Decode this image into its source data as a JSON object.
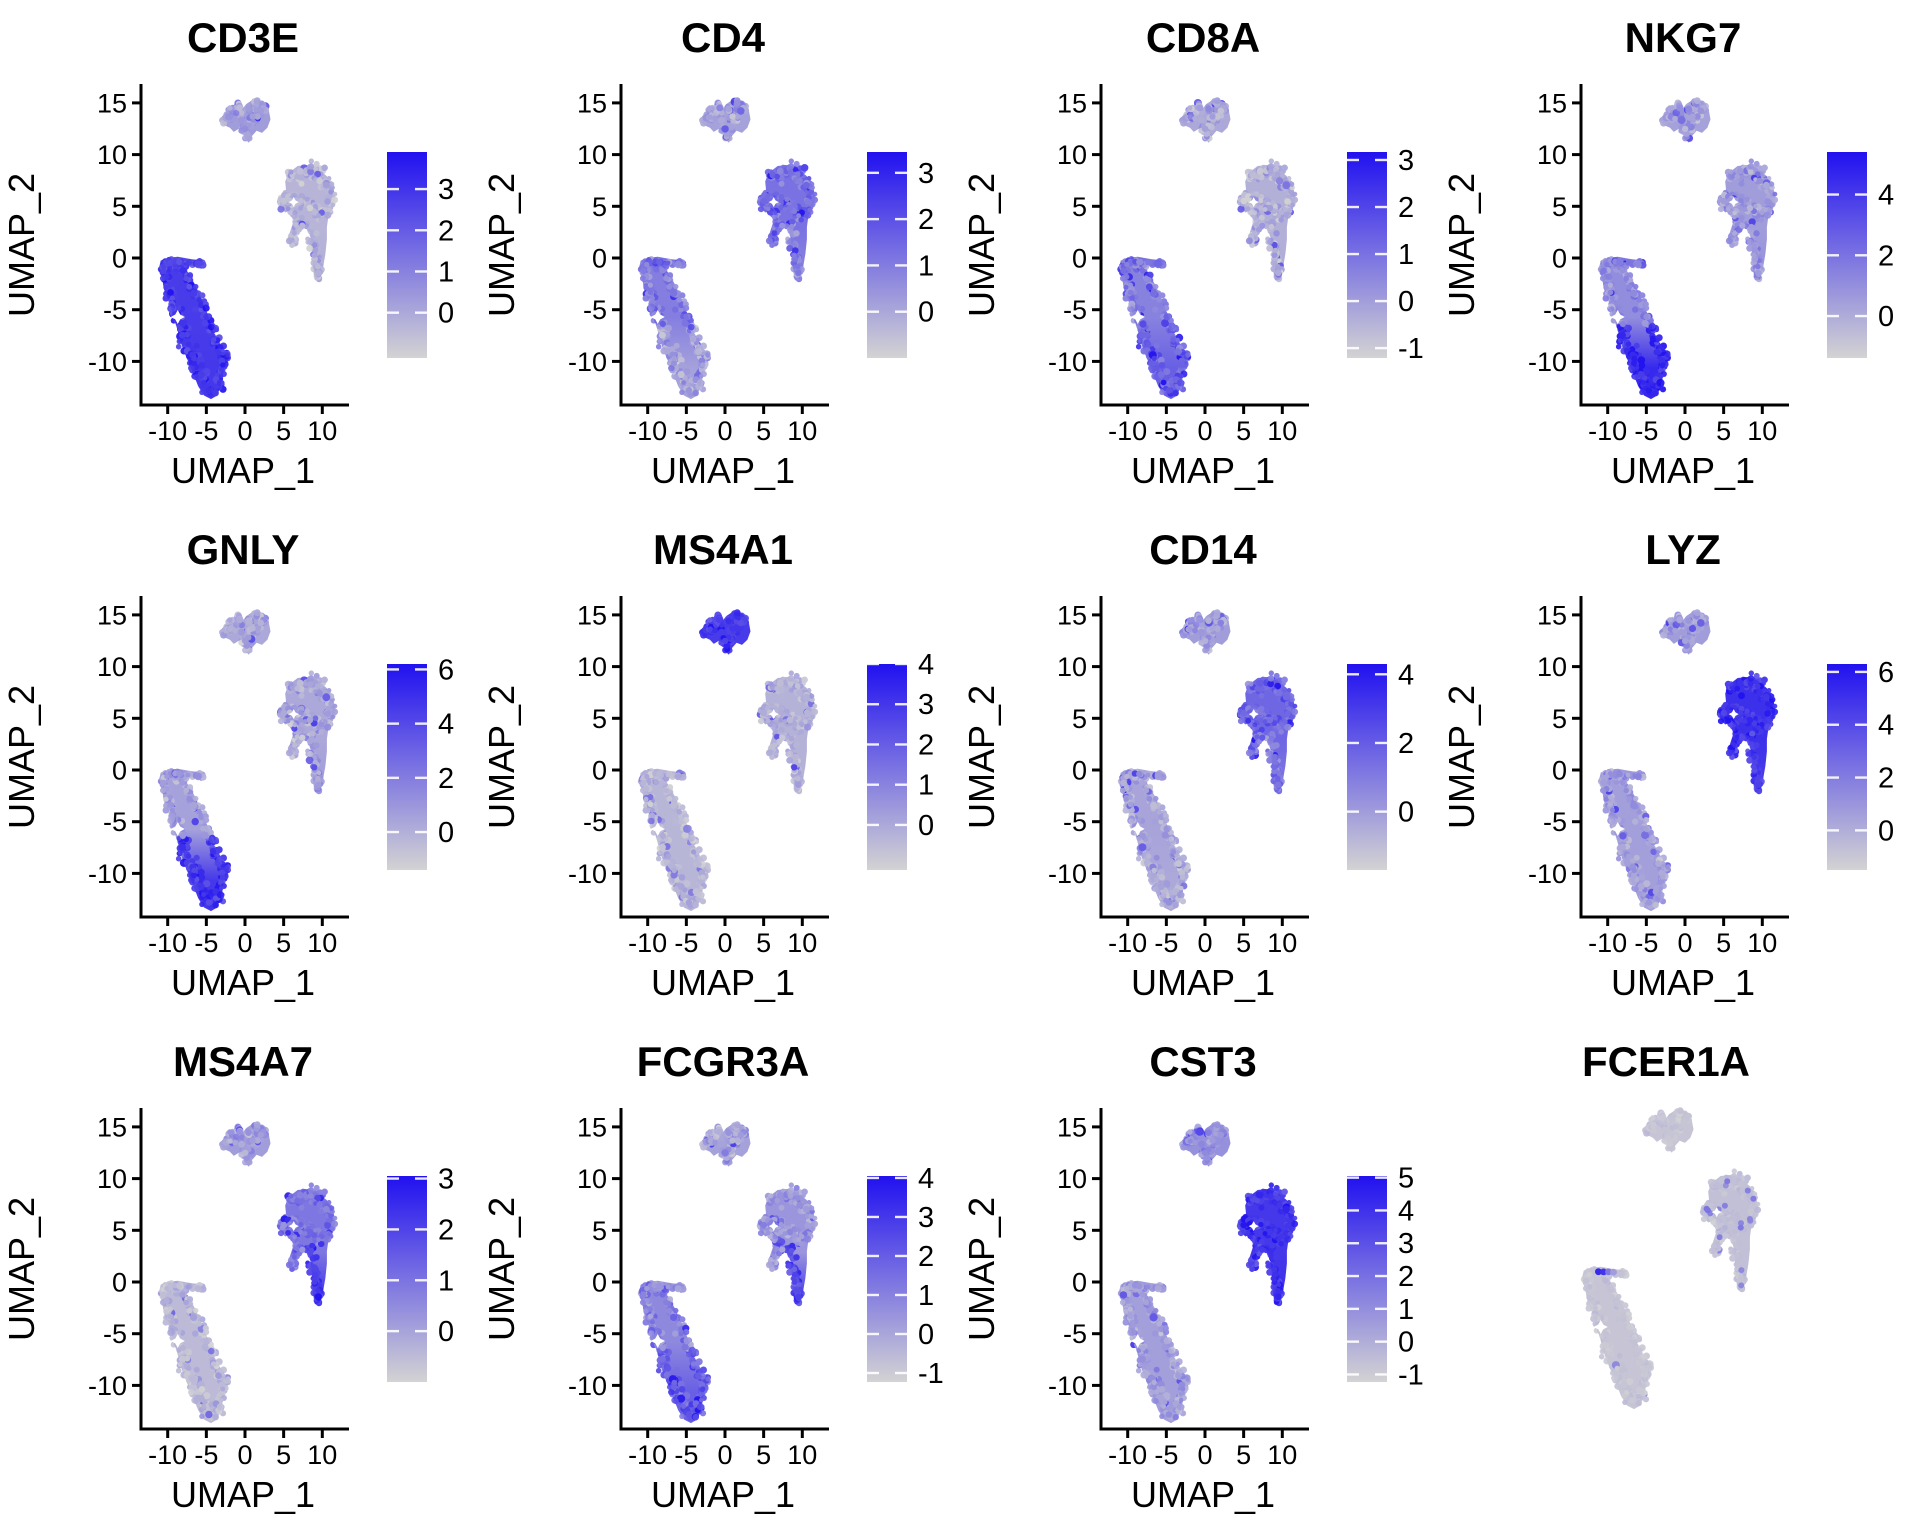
{
  "figure": {
    "background": "#ffffff",
    "colorscale": {
      "low": "#d3d3d3",
      "high": "#2111f0"
    }
  },
  "axes": {
    "x_label": "UMAP_1",
    "y_label": "UMAP_2",
    "x_ticks": [
      -10,
      -5,
      0,
      5,
      10
    ],
    "y_ticks": [
      15,
      10,
      5,
      0,
      -5,
      -10
    ]
  },
  "chart_data": {
    "type": "scatter",
    "description": "Grid of 12 single-cell UMAP feature plots (Seurat FeaturePlot style). Each panel shows the same UMAP embedding of PBMC-like cells (three clusters: T/NK cells lower-left with a small horizontal DC arm, monocytes/DC right, B cells top) colored light-grey-to-blue by per-gene expression. The FCER1A panel has no axes and no color legend.",
    "x_range_units": [
      -13.5,
      13.3
    ],
    "y_range_units": [
      -14.2,
      15.5
    ],
    "clusters": {
      "t_nodes": [
        [
          -10.4,
          -0.8,
          0.5
        ],
        [
          -10.4,
          -1.8,
          0.6
        ],
        [
          -10.0,
          -2.8,
          0.7
        ],
        [
          -9.6,
          -3.8,
          0.75
        ],
        [
          -9.1,
          -4.8,
          0.8
        ],
        [
          -8.6,
          -5.8,
          0.85
        ],
        [
          -8.1,
          -6.9,
          0.9
        ],
        [
          -7.6,
          -8.0,
          0.95
        ],
        [
          -7.0,
          -9.1,
          1.0
        ],
        [
          -6.4,
          -10.2,
          1.0
        ],
        [
          -5.8,
          -11.3,
          1.0
        ],
        [
          -5.0,
          -12.3,
          0.9
        ],
        [
          -4.3,
          -12.8,
          0.75
        ],
        [
          -3.6,
          -12.2,
          0.65
        ],
        [
          -3.2,
          -11.2,
          0.55
        ],
        [
          -2.9,
          -10.3,
          0.5
        ],
        [
          -2.45,
          -9.5,
          0.4
        ],
        [
          -3.3,
          -9.0,
          0.45
        ],
        [
          -3.9,
          -7.9,
          0.55
        ],
        [
          -4.4,
          -6.9,
          0.6
        ],
        [
          -4.9,
          -5.9,
          0.65
        ],
        [
          -5.5,
          -4.8,
          0.7
        ],
        [
          -6.1,
          -3.8,
          0.7
        ],
        [
          -6.7,
          -2.8,
          0.65
        ],
        [
          -7.4,
          -1.9,
          0.6
        ],
        [
          -8.2,
          -1.0,
          0.55
        ],
        [
          -9.0,
          -0.55,
          0.5
        ],
        [
          -9.9,
          -0.4,
          0.45
        ]
      ],
      "arm_nodes": [
        [
          -9.0,
          -0.35,
          0.22
        ],
        [
          -8.4,
          -0.4,
          0.22
        ],
        [
          -7.8,
          -0.42,
          0.22
        ],
        [
          -7.2,
          -0.45,
          0.22
        ],
        [
          -6.6,
          -0.48,
          0.22
        ],
        [
          -6.0,
          -0.5,
          0.22
        ],
        [
          -5.6,
          -0.52,
          0.2
        ]
      ],
      "m_nodes": [
        [
          6.3,
          7.9,
          0.75,
          0
        ],
        [
          7.4,
          8.2,
          0.85,
          0
        ],
        [
          8.6,
          8.3,
          0.85,
          0
        ],
        [
          9.7,
          7.9,
          0.8,
          0
        ],
        [
          10.6,
          7.2,
          0.75,
          0
        ],
        [
          11.1,
          6.3,
          0.65,
          0
        ],
        [
          11.0,
          5.3,
          0.65,
          0
        ],
        [
          10.5,
          4.6,
          0.65,
          0
        ],
        [
          9.6,
          4.3,
          0.75,
          0
        ],
        [
          8.6,
          4.8,
          0.8,
          0
        ],
        [
          7.7,
          5.3,
          0.8,
          0
        ],
        [
          6.8,
          5.7,
          0.75,
          0
        ],
        [
          5.9,
          5.6,
          0.65,
          0
        ],
        [
          5.1,
          5.3,
          0.55,
          0
        ],
        [
          4.9,
          5.8,
          0.45,
          0
        ],
        [
          6.4,
          4.3,
          0.55,
          0
        ],
        [
          7.0,
          3.3,
          0.5,
          0
        ],
        [
          6.6,
          2.4,
          0.45,
          0
        ],
        [
          6.1,
          1.7,
          0.4,
          0
        ],
        [
          8.2,
          3.0,
          0.55,
          1
        ],
        [
          8.7,
          2.0,
          0.55,
          1
        ],
        [
          9.0,
          1.0,
          0.5,
          1
        ],
        [
          9.2,
          0.0,
          0.5,
          1
        ],
        [
          9.4,
          -1.0,
          0.45,
          1
        ],
        [
          9.4,
          -1.8,
          0.4,
          1
        ]
      ],
      "b_nodes": [
        [
          -2.7,
          13.3,
          0.4
        ],
        [
          -2.0,
          13.7,
          0.45
        ],
        [
          -1.3,
          13.9,
          0.45
        ],
        [
          -0.6,
          13.5,
          0.4
        ],
        [
          -0.1,
          12.4,
          0.35
        ],
        [
          0.3,
          11.7,
          0.3
        ],
        [
          0.6,
          12.7,
          0.4
        ],
        [
          1.1,
          13.4,
          0.5
        ],
        [
          1.8,
          14.0,
          0.55
        ],
        [
          2.4,
          14.6,
          0.45
        ],
        [
          1.5,
          14.9,
          0.45
        ],
        [
          0.6,
          14.6,
          0.4
        ],
        [
          -0.9,
          14.6,
          0.35
        ],
        [
          -1.8,
          14.4,
          0.35
        ]
      ],
      "t_poly": [
        [
          -10.9,
          -0.25
        ],
        [
          -11.15,
          -1.1
        ],
        [
          -10.7,
          -2.0
        ],
        [
          -10.5,
          -3.0
        ],
        [
          -10.0,
          -3.9
        ],
        [
          -9.55,
          -4.8
        ],
        [
          -9.2,
          -5.9
        ],
        [
          -8.75,
          -6.9
        ],
        [
          -8.4,
          -8.0
        ],
        [
          -7.85,
          -9.1
        ],
        [
          -7.25,
          -10.2
        ],
        [
          -6.65,
          -11.3
        ],
        [
          -6.05,
          -12.4
        ],
        [
          -5.3,
          -13.3
        ],
        [
          -4.4,
          -13.65
        ],
        [
          -3.6,
          -13.3
        ],
        [
          -3.1,
          -12.3
        ],
        [
          -2.85,
          -11.2
        ],
        [
          -2.5,
          -10.25
        ],
        [
          -1.95,
          -9.7
        ],
        [
          -2.25,
          -9.05
        ],
        [
          -3.05,
          -9.1
        ],
        [
          -3.6,
          -8.5
        ],
        [
          -3.95,
          -7.4
        ],
        [
          -4.4,
          -6.4
        ],
        [
          -4.9,
          -5.3
        ],
        [
          -5.45,
          -4.3
        ],
        [
          -6.0,
          -3.3
        ],
        [
          -6.6,
          -2.4
        ],
        [
          -7.3,
          -1.5
        ],
        [
          -8.0,
          -0.7
        ],
        [
          -8.85,
          -0.2
        ],
        [
          -9.9,
          0.05
        ]
      ],
      "arm_poly": [
        [
          -9.55,
          0.05
        ],
        [
          -8.7,
          0.12
        ],
        [
          -7.8,
          0.0
        ],
        [
          -6.9,
          -0.12
        ],
        [
          -6.0,
          -0.18
        ],
        [
          -5.45,
          -0.28
        ],
        [
          -5.25,
          -0.6
        ],
        [
          -5.9,
          -0.85
        ],
        [
          -6.8,
          -0.78
        ],
        [
          -7.7,
          -0.7
        ],
        [
          -8.6,
          -0.62
        ],
        [
          -9.35,
          -0.5
        ]
      ],
      "m_poly": [
        [
          5.6,
          8.2
        ],
        [
          6.8,
          8.9
        ],
        [
          8.2,
          9.0
        ],
        [
          9.5,
          8.6
        ],
        [
          10.6,
          7.9
        ],
        [
          11.4,
          6.9
        ],
        [
          11.7,
          5.8
        ],
        [
          11.4,
          4.8
        ],
        [
          10.8,
          4.1
        ],
        [
          10.6,
          3.0
        ],
        [
          10.6,
          1.8
        ],
        [
          10.4,
          0.4
        ],
        [
          10.1,
          -0.9
        ],
        [
          9.7,
          -1.95
        ],
        [
          9.1,
          -2.15
        ],
        [
          8.8,
          -1.2
        ],
        [
          8.7,
          0.0
        ],
        [
          8.6,
          1.2
        ],
        [
          8.4,
          2.4
        ],
        [
          7.9,
          3.2
        ],
        [
          7.2,
          3.5
        ],
        [
          6.75,
          2.7
        ],
        [
          6.35,
          1.8
        ],
        [
          5.85,
          1.3
        ],
        [
          5.55,
          1.8
        ],
        [
          5.9,
          2.7
        ],
        [
          6.3,
          3.6
        ],
        [
          6.6,
          4.35
        ],
        [
          6.0,
          4.6
        ],
        [
          5.2,
          4.4
        ],
        [
          4.6,
          4.9
        ],
        [
          4.4,
          5.7
        ],
        [
          4.95,
          6.4
        ],
        [
          5.3,
          6.6
        ],
        [
          5.2,
          7.4
        ]
      ],
      "b_poly": [
        [
          -3.3,
          13.4
        ],
        [
          -2.5,
          14.1
        ],
        [
          -1.6,
          14.35
        ],
        [
          -0.9,
          13.85
        ],
        [
          -0.4,
          14.35
        ],
        [
          0.2,
          14.9
        ],
        [
          0.9,
          15.25
        ],
        [
          1.8,
          15.35
        ],
        [
          2.6,
          14.9
        ],
        [
          3.1,
          14.2
        ],
        [
          3.3,
          13.4
        ],
        [
          2.9,
          12.6
        ],
        [
          2.2,
          12.1
        ],
        [
          1.5,
          12.3
        ],
        [
          0.9,
          11.8
        ],
        [
          0.5,
          11.15
        ],
        [
          0.0,
          11.5
        ],
        [
          -0.2,
          12.3
        ],
        [
          -0.8,
          12.5
        ],
        [
          -1.45,
          12.2
        ],
        [
          -1.95,
          12.6
        ],
        [
          -2.7,
          12.85
        ]
      ],
      "counts": {
        "t": 380,
        "arm": 36,
        "m": 340,
        "b": 150
      }
    },
    "panels": [
      {
        "title": "CD3E",
        "axes": true,
        "legend_ticks": [
          3,
          2,
          1,
          0
        ],
        "vmax": 3.9,
        "vmin": -1.1,
        "expr": {
          "arm": 0.72,
          "t_up": 0.78,
          "t_low": 0.8,
          "m_body": 0.16,
          "m_tail": 0.18,
          "b": 0.28
        },
        "noise": 0.08,
        "boost": 0.05
      },
      {
        "title": "CD4",
        "axes": true,
        "legend_ticks": [
          3,
          2,
          1,
          0
        ],
        "vmax": 3.45,
        "vmin": -1.0,
        "expr": {
          "arm": 0.5,
          "t_up": 0.44,
          "t_low": 0.26,
          "m_body": 0.5,
          "m_tail": 0.42,
          "b": 0.26
        },
        "noise": 0.1,
        "boost": 0.05
      },
      {
        "title": "CD8A",
        "axes": true,
        "legend_ticks": [
          3,
          2,
          1,
          0,
          -1
        ],
        "vmax": 3.17,
        "vmin": -1.21,
        "expr": {
          "arm": 0.5,
          "t_up": 0.42,
          "t_low": 0.6,
          "m_body": 0.18,
          "m_tail": 0.2,
          "b": 0.22
        },
        "noise": 0.1,
        "boost": 0.06
      },
      {
        "title": "NKG7",
        "axes": true,
        "legend_ticks": [
          4,
          2,
          0
        ],
        "vmax": 5.4,
        "vmin": -1.38,
        "expr": {
          "arm": 0.48,
          "t_up": 0.36,
          "t_low": 0.88,
          "m_body": 0.28,
          "m_tail": 0.34,
          "b": 0.26
        },
        "noise": 0.09,
        "boost": 0.05
      },
      {
        "title": "GNLY",
        "axes": true,
        "legend_ticks": [
          6,
          4,
          2,
          0
        ],
        "vmax": 6.2,
        "vmin": -1.4,
        "expr": {
          "arm": 0.3,
          "t_up": 0.26,
          "t_low": 0.8,
          "m_body": 0.22,
          "m_tail": 0.28,
          "b": 0.22
        },
        "noise": 0.09,
        "boost": 0.05
      },
      {
        "title": "MS4A1",
        "axes": true,
        "legend_ticks": [
          4,
          3,
          2,
          1,
          0
        ],
        "vmax": 4.0,
        "vmin": -1.12,
        "expr": {
          "arm": 0.16,
          "t_up": 0.15,
          "t_low": 0.15,
          "m_body": 0.17,
          "m_tail": 0.17,
          "b": 0.78
        },
        "noise": 0.07,
        "boost": 0.06
      },
      {
        "title": "CD14",
        "axes": true,
        "legend_ticks": [
          4,
          2,
          0
        ],
        "vmax": 4.3,
        "vmin": -1.7,
        "expr": {
          "arm": 0.24,
          "t_up": 0.24,
          "t_low": 0.22,
          "m_body": 0.56,
          "m_tail": 0.48,
          "b": 0.28
        },
        "noise": 0.09,
        "boost": 0.05
      },
      {
        "title": "LYZ",
        "axes": true,
        "legend_ticks": [
          6,
          4,
          2,
          0
        ],
        "vmax": 6.3,
        "vmin": -1.5,
        "expr": {
          "arm": 0.3,
          "t_up": 0.27,
          "t_low": 0.27,
          "m_body": 0.84,
          "m_tail": 0.78,
          "b": 0.28
        },
        "noise": 0.08,
        "boost": 0.05
      },
      {
        "title": "MS4A7",
        "axes": true,
        "legend_ticks": [
          3,
          2,
          1,
          0
        ],
        "vmax": 3.05,
        "vmin": -1.0,
        "expr": {
          "arm": 0.15,
          "t_up": 0.13,
          "t_low": 0.13,
          "m_body": 0.48,
          "m_tail": 0.8,
          "b": 0.28
        },
        "noise": 0.08,
        "boost": 0.05
      },
      {
        "title": "FCGR3A",
        "axes": true,
        "legend_ticks": [
          4,
          3,
          2,
          1,
          0,
          -1
        ],
        "vmax": 4.05,
        "vmin": -1.23,
        "expr": {
          "arm": 0.32,
          "t_up": 0.38,
          "t_low": 0.6,
          "m_body": 0.32,
          "m_tail": 0.74,
          "b": 0.26
        },
        "noise": 0.1,
        "boost": 0.05
      },
      {
        "title": "CST3",
        "axes": true,
        "legend_ticks": [
          5,
          4,
          3,
          2,
          1,
          0,
          -1
        ],
        "vmax": 5.05,
        "vmin": -1.23,
        "expr": {
          "arm": 0.3,
          "t_up": 0.27,
          "t_low": 0.27,
          "m_body": 0.8,
          "m_tail": 0.84,
          "b": 0.34
        },
        "noise": 0.08,
        "boost": 0.04
      },
      {
        "title": "FCER1A",
        "axes": false,
        "legend_ticks": null,
        "vmax": null,
        "vmin": null,
        "expr": {
          "arm": 0.08,
          "t_up": 0.07,
          "t_low": 0.07,
          "m_body": 0.1,
          "m_tail": 0.1,
          "b": 0.07
        },
        "noise": 0.03,
        "boost": 0.008,
        "highlight_dots": [
          {
            "x": -9.0,
            "y": -0.36,
            "t": 0.95
          },
          {
            "x": -8.35,
            "y": -0.38,
            "t": 0.88
          },
          {
            "x": -7.7,
            "y": -0.38,
            "t": 0.5
          },
          {
            "x": -7.05,
            "y": -0.4,
            "t": 0.3
          }
        ],
        "m_speckles": {
          "count": 16,
          "t": 0.45
        }
      }
    ]
  }
}
